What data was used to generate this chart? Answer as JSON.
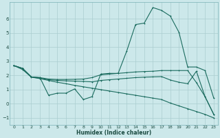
{
  "xlabel": "Humidex (Indice chaleur)",
  "bg_color": "#cce8ea",
  "grid_color": "#aacdd0",
  "line_color": "#1a6b5e",
  "ylim": [
    -1.5,
    7.2
  ],
  "xlim": [
    -0.5,
    23.5
  ],
  "yticks": [
    -1,
    0,
    1,
    2,
    3,
    4,
    5,
    6
  ],
  "xticks": [
    0,
    1,
    2,
    3,
    4,
    5,
    6,
    7,
    8,
    9,
    10,
    11,
    12,
    13,
    14,
    15,
    16,
    17,
    18,
    19,
    20,
    21,
    22,
    23
  ],
  "series": [
    {
      "x": [
        0,
        1,
        2,
        3,
        4,
        5,
        6,
        7,
        8,
        9,
        10,
        11,
        12,
        13,
        14,
        15,
        16,
        17,
        18,
        19,
        20,
        21,
        22,
        23
      ],
      "y": [
        2.7,
        2.5,
        1.9,
        1.85,
        0.6,
        0.75,
        0.75,
        1.05,
        0.3,
        0.5,
        2.1,
        2.15,
        2.15,
        3.75,
        5.6,
        5.7,
        6.8,
        6.6,
        6.2,
        5.05,
        2.6,
        2.6,
        2.35,
        0.4
      ]
    },
    {
      "x": [
        0,
        1,
        2,
        3,
        4,
        5,
        6,
        7,
        8,
        9,
        10,
        11,
        12,
        13,
        14,
        15,
        16,
        17,
        18,
        19,
        20,
        21,
        22,
        23
      ],
      "y": [
        2.7,
        2.5,
        1.9,
        1.85,
        1.75,
        1.72,
        1.72,
        1.73,
        1.75,
        1.85,
        2.05,
        2.1,
        2.15,
        2.2,
        2.25,
        2.28,
        2.3,
        2.35,
        2.35,
        2.35,
        2.35,
        1.5,
        0.5,
        -0.75
      ]
    },
    {
      "x": [
        0,
        1,
        2,
        3,
        4,
        5,
        6,
        7,
        8,
        9,
        10,
        11,
        12,
        13,
        14,
        15,
        16,
        17,
        18,
        19,
        20,
        21,
        22,
        23
      ],
      "y": [
        2.7,
        2.5,
        1.9,
        1.8,
        1.7,
        1.65,
        1.62,
        1.6,
        1.58,
        1.55,
        1.65,
        1.7,
        1.75,
        1.8,
        1.85,
        1.88,
        1.9,
        1.92,
        1.68,
        1.52,
        1.42,
        2.3,
        0.5,
        -0.75
      ]
    },
    {
      "x": [
        0,
        1,
        2,
        3,
        4,
        5,
        6,
        7,
        8,
        9,
        10,
        11,
        12,
        13,
        14,
        15,
        16,
        17,
        18,
        19,
        20,
        21,
        22,
        23
      ],
      "y": [
        2.7,
        2.42,
        1.88,
        1.78,
        1.65,
        1.52,
        1.42,
        1.3,
        1.2,
        1.1,
        1.0,
        0.9,
        0.8,
        0.7,
        0.6,
        0.5,
        0.4,
        0.3,
        0.05,
        -0.15,
        -0.35,
        -0.55,
        -0.75,
        -1.0
      ]
    }
  ]
}
